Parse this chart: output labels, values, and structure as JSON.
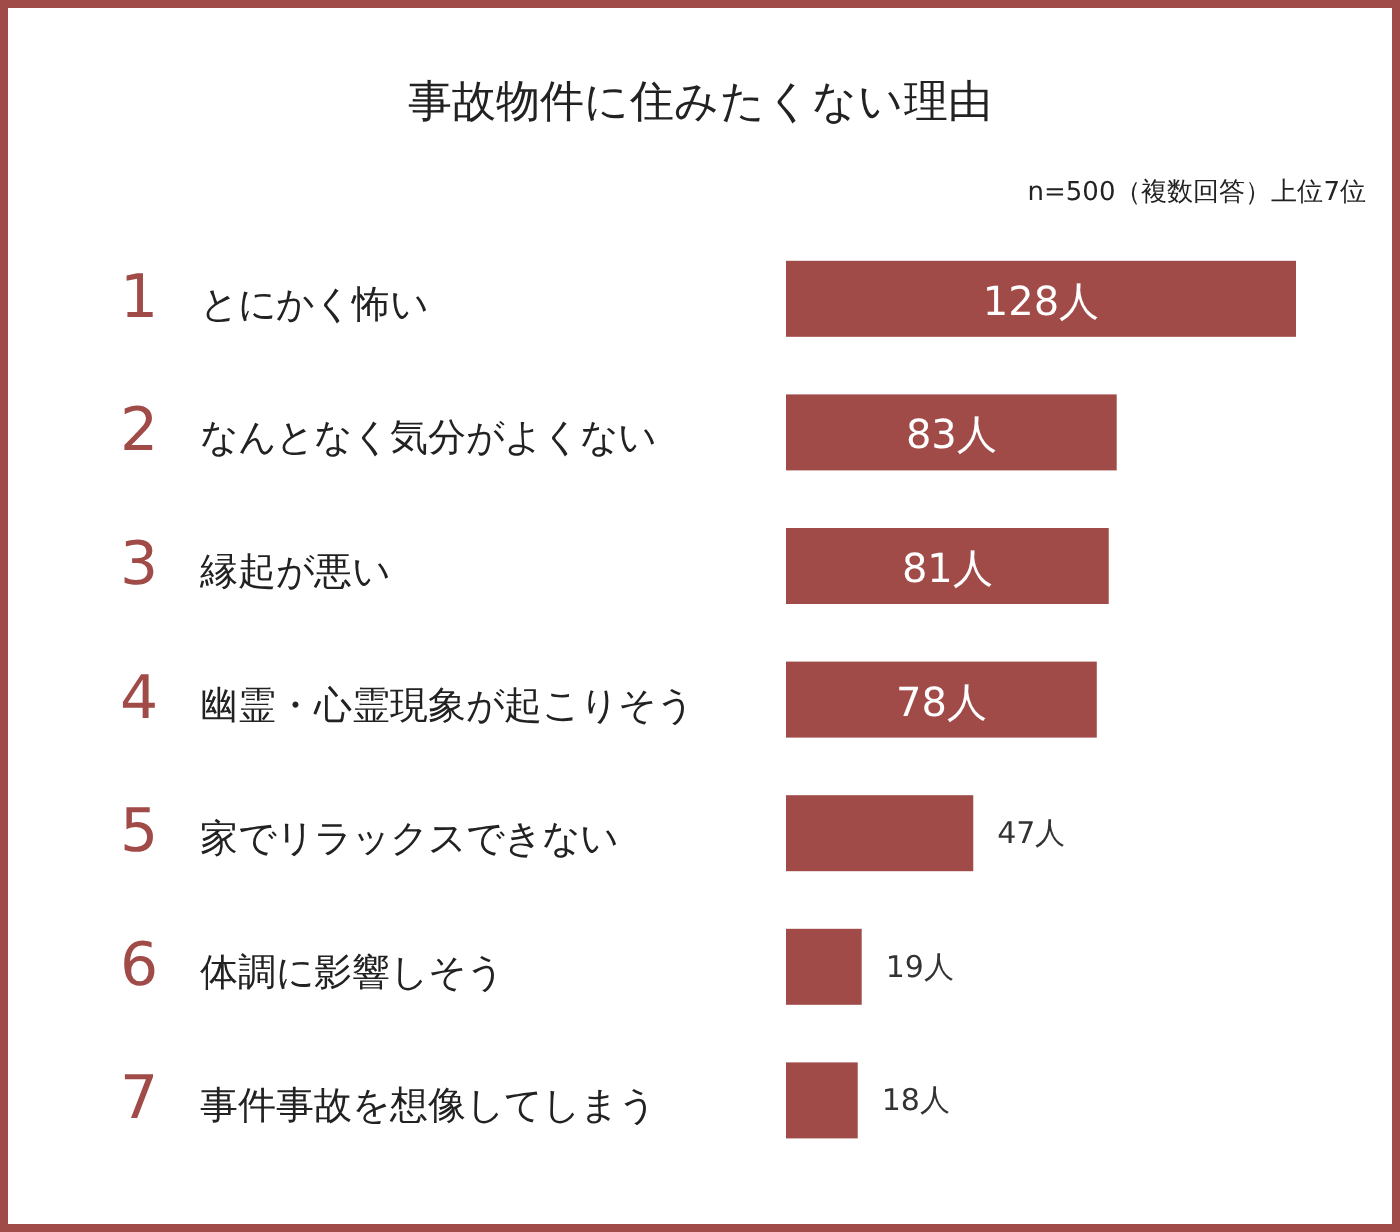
{
  "chart_data": {
    "type": "bar",
    "orientation": "horizontal",
    "title": "事故物件に住みたくない理由",
    "subtitle": "n=500（複数回答）上位7位",
    "categories": [
      "1 とにかく怖い",
      "2 なんとなく気分がよくない",
      "3 縁起が悪い",
      "4 幽霊・心霊現象が起こりそう",
      "5 家でリラックスできない",
      "6 体調に影響しそう",
      "7 事件事故を想像してしまう"
    ],
    "values": [
      128,
      83,
      81,
      78,
      47,
      19,
      18
    ],
    "value_labels": [
      "128人",
      "83人",
      "81人",
      "78人",
      "47人",
      "19人",
      "18人"
    ],
    "color": "#a04b48"
  }
}
